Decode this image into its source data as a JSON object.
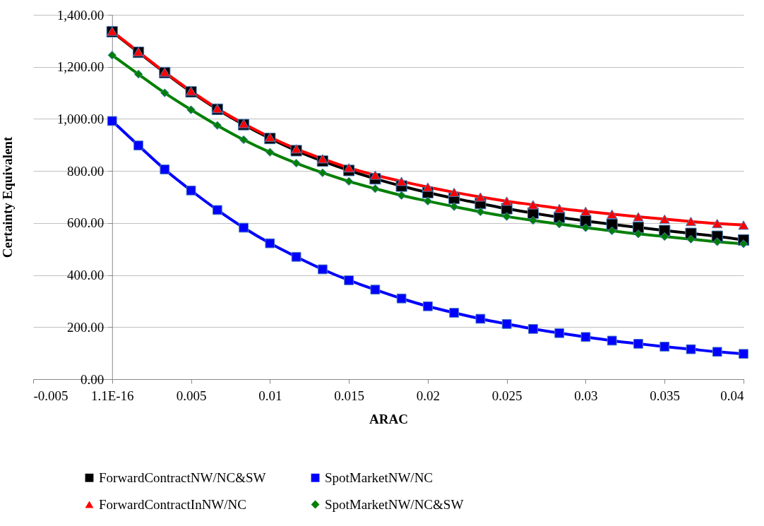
{
  "chart_data": {
    "type": "line",
    "xlabel": "ARAC",
    "ylabel": "Certainty Equivalent",
    "x": [
      0,
      0.001667,
      0.003333,
      0.005,
      0.006667,
      0.008333,
      0.01,
      0.011667,
      0.013333,
      0.015,
      0.016667,
      0.018333,
      0.02,
      0.021667,
      0.023333,
      0.025,
      0.026667,
      0.028333,
      0.03,
      0.031667,
      0.033333,
      0.035,
      0.036667,
      0.038333,
      0.04
    ],
    "series": [
      {
        "name": "ForwardContractNW/NC&SW",
        "color": "#000000",
        "marker": "square",
        "values": [
          1335,
          1256,
          1178,
          1104,
          1037,
          978,
          925,
          878,
          838,
          802,
          770,
          742,
          717,
          695,
          675,
          655,
          638,
          622,
          608,
          595,
          583,
          571,
          560,
          549,
          535
        ]
      },
      {
        "name": "ForwardContractInNW/NC",
        "color": "#ff0000",
        "marker": "triangle",
        "values": [
          1337,
          1258,
          1180,
          1107,
          1040,
          982,
          930,
          885,
          847,
          812,
          784,
          760,
          738,
          718,
          700,
          684,
          670,
          656,
          645,
          634,
          624,
          615,
          606,
          598,
          592
        ]
      },
      {
        "name": "SpotMarketNW/NC",
        "color": "#0000ff",
        "marker": "square",
        "values": [
          992,
          898,
          806,
          725,
          650,
          582,
          522,
          470,
          422,
          380,
          344,
          310,
          280,
          255,
          232,
          212,
          193,
          177,
          162,
          148,
          136,
          125,
          115,
          105,
          97
        ]
      },
      {
        "name": "SpotMarketNW/NC&SW",
        "color": "#008000",
        "marker": "diamond",
        "values": [
          1245,
          1172,
          1100,
          1035,
          975,
          920,
          872,
          830,
          793,
          760,
          732,
          706,
          684,
          663,
          643,
          625,
          610,
          596,
          582,
          570,
          558,
          548,
          538,
          528,
          520
        ]
      }
    ],
    "xlim": [
      -0.005,
      0.04
    ],
    "xticks": [
      -0.005,
      {
        "value": 0,
        "label": "1.1E-16"
      },
      0.005,
      0.01,
      0.015,
      0.02,
      0.025,
      0.03,
      0.035,
      0.04
    ],
    "ylim": [
      0,
      1400
    ],
    "yticks": [
      {
        "value": 0,
        "label": "0.00"
      },
      {
        "value": 200,
        "label": "200.00"
      },
      {
        "value": 400,
        "label": "400.00"
      },
      {
        "value": 600,
        "label": "600.00"
      },
      {
        "value": 800,
        "label": "800.00"
      },
      {
        "value": 1000,
        "label": "1,000.00"
      },
      {
        "value": 1200,
        "label": "1,200.00"
      },
      {
        "value": 1400,
        "label": "1,400.00"
      }
    ],
    "grid": "y",
    "legend": "bottom",
    "line_style": "solid"
  }
}
